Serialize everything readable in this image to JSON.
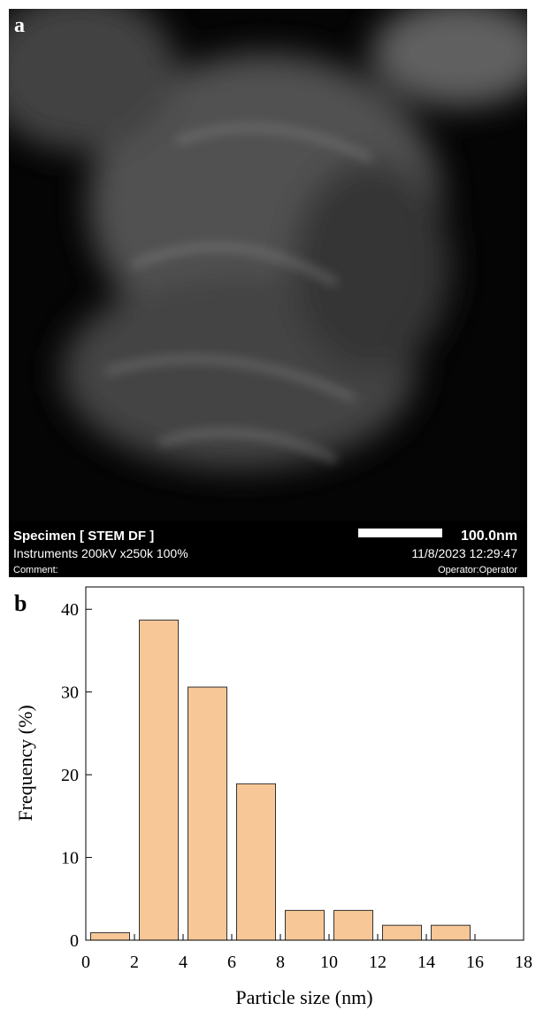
{
  "image_panel": {
    "panel_label": "a",
    "specimen": "Specimen [ STEM DF ]",
    "scale_bar": "100.0nm",
    "instruments": "Instruments 200kV x250k 100%",
    "datetime": "11/8/2023 12:29:47",
    "comment": "Comment:",
    "operator": "Operator:Operator"
  },
  "chart_data": {
    "type": "histogram",
    "panel_label": "b",
    "x_label": "Particle size (nm)",
    "y_label": "Frequency (%)",
    "bins": [
      0,
      2,
      4,
      6,
      8,
      10,
      12,
      14,
      16,
      18
    ],
    "counts": [
      0.9,
      38.7,
      30.6,
      18.9,
      3.6,
      3.6,
      1.8,
      1.8,
      0
    ],
    "color": "#f8c797",
    "xlim": [
      0,
      18
    ],
    "xticks": [
      0,
      2,
      4,
      6,
      8,
      10,
      12,
      14,
      16,
      18
    ],
    "ylim": [
      0,
      42.7
    ],
    "yticks": [
      0,
      10,
      20,
      30,
      40
    ]
  }
}
